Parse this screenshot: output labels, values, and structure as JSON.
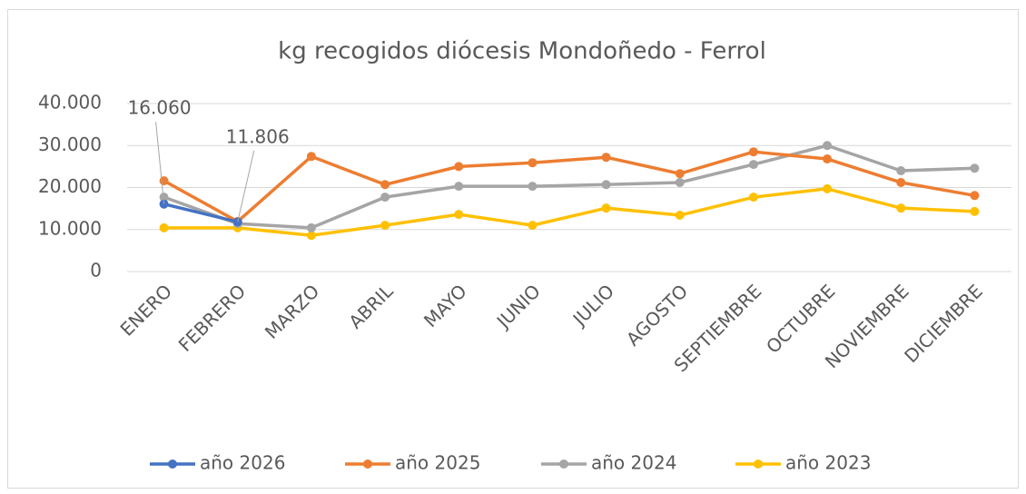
{
  "chart_data": {
    "type": "line",
    "title": "kg recogidos diócesis Mondoñedo - Ferrol",
    "categories": [
      "ENERO",
      "FEBRERO",
      "MARZO",
      "ABRIL",
      "MAYO",
      "JUNIO",
      "JULIO",
      "AGOSTO",
      "SEPTIEMBRE",
      "OCTUBRE",
      "NOVIEMBRE",
      "DICIEMBRE"
    ],
    "series": [
      {
        "name": "año 2026",
        "color": "#4472c4",
        "values": [
          16060,
          11806,
          null,
          null,
          null,
          null,
          null,
          null,
          null,
          null,
          null,
          null
        ],
        "value_labels": [
          "16.060",
          "11.806",
          null,
          null,
          null,
          null,
          null,
          null,
          null,
          null,
          null,
          null
        ]
      },
      {
        "name": "año 2025",
        "color": "#ed7d31",
        "values": [
          21600,
          11900,
          27400,
          20700,
          25000,
          25900,
          27200,
          23300,
          28500,
          26800,
          21200,
          18100
        ]
      },
      {
        "name": "año 2024",
        "color": "#a5a5a5",
        "values": [
          17700,
          11400,
          10400,
          17700,
          20300,
          20300,
          20700,
          21200,
          25500,
          30000,
          24000,
          24600
        ]
      },
      {
        "name": "año 2023",
        "color": "#ffc000",
        "values": [
          10400,
          10400,
          8600,
          11000,
          13600,
          11000,
          15100,
          13400,
          17700,
          19700,
          15100,
          14300
        ]
      }
    ],
    "ylim": [
      0,
      40000
    ],
    "yticks": [
      {
        "value": 0,
        "label": "0"
      },
      {
        "value": 10000,
        "label": "10.000"
      },
      {
        "value": 20000,
        "label": "20.000"
      },
      {
        "value": 30000,
        "label": "30.000"
      },
      {
        "value": 40000,
        "label": "40.000"
      }
    ],
    "grid": true,
    "legend": "bottom"
  }
}
